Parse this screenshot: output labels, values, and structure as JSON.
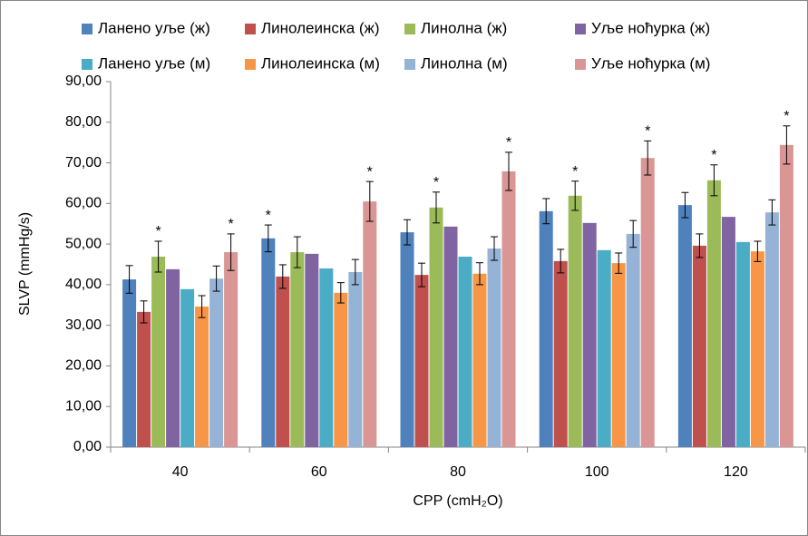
{
  "chart_data": {
    "type": "bar",
    "x_label": "CPP (cmH₂O)",
    "y_label": "SLVP (mmHg/s)",
    "categories": [
      "40",
      "60",
      "80",
      "100",
      "120"
    ],
    "ylim": [
      0,
      90
    ],
    "yticks": [
      {
        "value": 0,
        "label": "0,00"
      },
      {
        "value": 10,
        "label": "10,00"
      },
      {
        "value": 20,
        "label": "20,00"
      },
      {
        "value": 30,
        "label": "30,00"
      },
      {
        "value": 40,
        "label": "40,00"
      },
      {
        "value": 50,
        "label": "50,00"
      },
      {
        "value": 60,
        "label": "60,00"
      },
      {
        "value": 70,
        "label": "70,00"
      },
      {
        "value": 80,
        "label": "80,00"
      },
      {
        "value": 90,
        "label": "90,00"
      }
    ],
    "series": [
      {
        "name": "Ланено уље (ж)",
        "color": "#4F81BD",
        "values": [
          41.3,
          51.4,
          52.9,
          58.1,
          59.6
        ],
        "errors": [
          3.4,
          3.3,
          3.1,
          3.1,
          3.1
        ],
        "annotations": [
          null,
          "*",
          null,
          null,
          null
        ]
      },
      {
        "name": "Линолеинска (ж)",
        "color": "#C0504D",
        "values": [
          33.3,
          42.0,
          42.4,
          45.8,
          49.6
        ],
        "errors": [
          2.7,
          2.9,
          2.9,
          2.9,
          2.9
        ],
        "annotations": [
          null,
          null,
          null,
          null,
          null
        ]
      },
      {
        "name": "Линолна (ж)",
        "color": "#9BBB59",
        "values": [
          46.9,
          48.0,
          59.0,
          61.9,
          65.7
        ],
        "errors": [
          3.8,
          3.8,
          3.8,
          3.6,
          3.8
        ],
        "annotations": [
          "*",
          null,
          "*",
          "*",
          "*"
        ]
      },
      {
        "name": "Уље ноћурка (ж)",
        "color": "#8064A2",
        "values": [
          43.8,
          47.6,
          54.3,
          55.2,
          56.7
        ],
        "errors": [
          null,
          null,
          null,
          null,
          null
        ],
        "annotations": [
          null,
          null,
          null,
          null,
          null
        ]
      },
      {
        "name": "Ланено уље (м)",
        "color": "#4BACC6",
        "values": [
          38.9,
          44.0,
          46.9,
          48.5,
          50.5
        ],
        "errors": [
          null,
          null,
          null,
          null,
          null
        ],
        "annotations": [
          null,
          null,
          null,
          null,
          null
        ]
      },
      {
        "name": "Линолеинска (м)",
        "color": "#F79646",
        "values": [
          34.6,
          38.0,
          42.7,
          45.3,
          48.2
        ],
        "errors": [
          2.7,
          2.5,
          2.7,
          2.5,
          2.5
        ],
        "annotations": [
          null,
          null,
          null,
          null,
          null
        ]
      },
      {
        "name": "Линолна (м)",
        "color": "#95B3D7",
        "values": [
          41.5,
          43.1,
          48.9,
          52.5,
          57.8
        ],
        "errors": [
          3.1,
          3.1,
          2.9,
          3.3,
          3.1
        ],
        "annotations": [
          null,
          null,
          null,
          null,
          null
        ]
      },
      {
        "name": "Уље ноћурка (м)",
        "color": "#D99694",
        "values": [
          48.0,
          60.5,
          67.9,
          71.2,
          74.4
        ],
        "errors": [
          4.5,
          4.9,
          4.7,
          4.2,
          4.7
        ],
        "annotations": [
          "*",
          "*",
          "*",
          "*",
          "*"
        ]
      }
    ]
  }
}
